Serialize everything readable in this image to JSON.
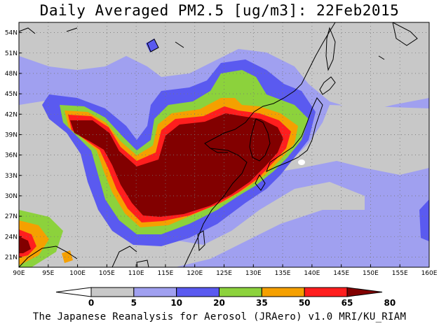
{
  "title": "Daily Averaged PM2.5 [ug/m3]: 22Feb2015",
  "footer": "The Japanese Reanalysis for Aerosol (JRAero) v1.0 MRI/KU_RIAM",
  "map": {
    "lon_range": [
      90,
      160
    ],
    "lat_range": [
      19.5,
      55.5
    ],
    "lon_ticks": [
      "90E",
      "95E",
      "100E",
      "105E",
      "110E",
      "115E",
      "120E",
      "125E",
      "130E",
      "135E",
      "140E",
      "145E",
      "150E",
      "155E",
      "160E"
    ],
    "lat_ticks": [
      "54N",
      "51N",
      "48N",
      "45N",
      "42N",
      "39N",
      "36N",
      "33N",
      "30N",
      "27N",
      "24N",
      "21N"
    ],
    "grid": true
  },
  "colorbar": {
    "labels": [
      "0",
      "5",
      "10",
      "20",
      "35",
      "50",
      "65",
      "80"
    ],
    "colors": [
      "#ffffff",
      "#c8c8c8",
      "#a0a0f0",
      "#5a5af0",
      "#8cd23c",
      "#f5a000",
      "#ff1e1e",
      "#820000"
    ]
  }
}
